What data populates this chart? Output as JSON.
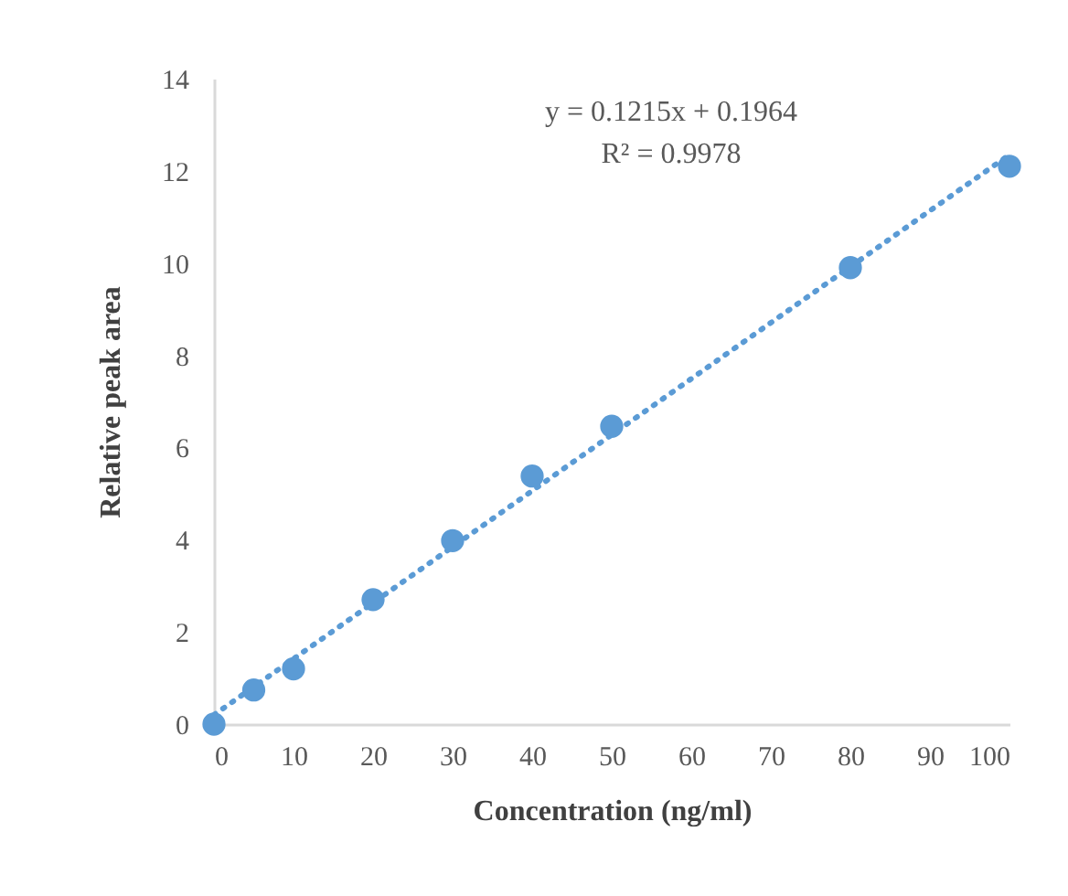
{
  "chart_data": {
    "type": "scatter",
    "xlabel": "Concentration (ng/ml)",
    "ylabel": "Relative  peak  area",
    "annotations": [
      "y = 0.1215x + 0.1964",
      "R² = 0.9978"
    ],
    "xlim": [
      0,
      100
    ],
    "xticks": [
      0,
      10,
      20,
      30,
      40,
      50,
      60,
      70,
      80,
      90,
      100
    ],
    "ylim": [
      0,
      14
    ],
    "yticks": [
      0,
      2,
      4,
      6,
      8,
      10,
      12,
      14
    ],
    "grid": false,
    "marker": "circle",
    "series": [
      {
        "color": "#5b9bd5",
        "x": [
          0,
          5,
          10,
          20,
          30,
          40,
          50,
          80,
          100
        ],
        "values": [
          0,
          0.74,
          1.2,
          2.7,
          3.98,
          5.38,
          6.46,
          9.9,
          12.1
        ]
      },
      {
        "type": "line",
        "color": "#5b9bd5",
        "line_style": "dotted",
        "marker": "none",
        "x": [
          0,
          100
        ],
        "values": [
          0.2,
          12.35
        ]
      }
    ]
  }
}
